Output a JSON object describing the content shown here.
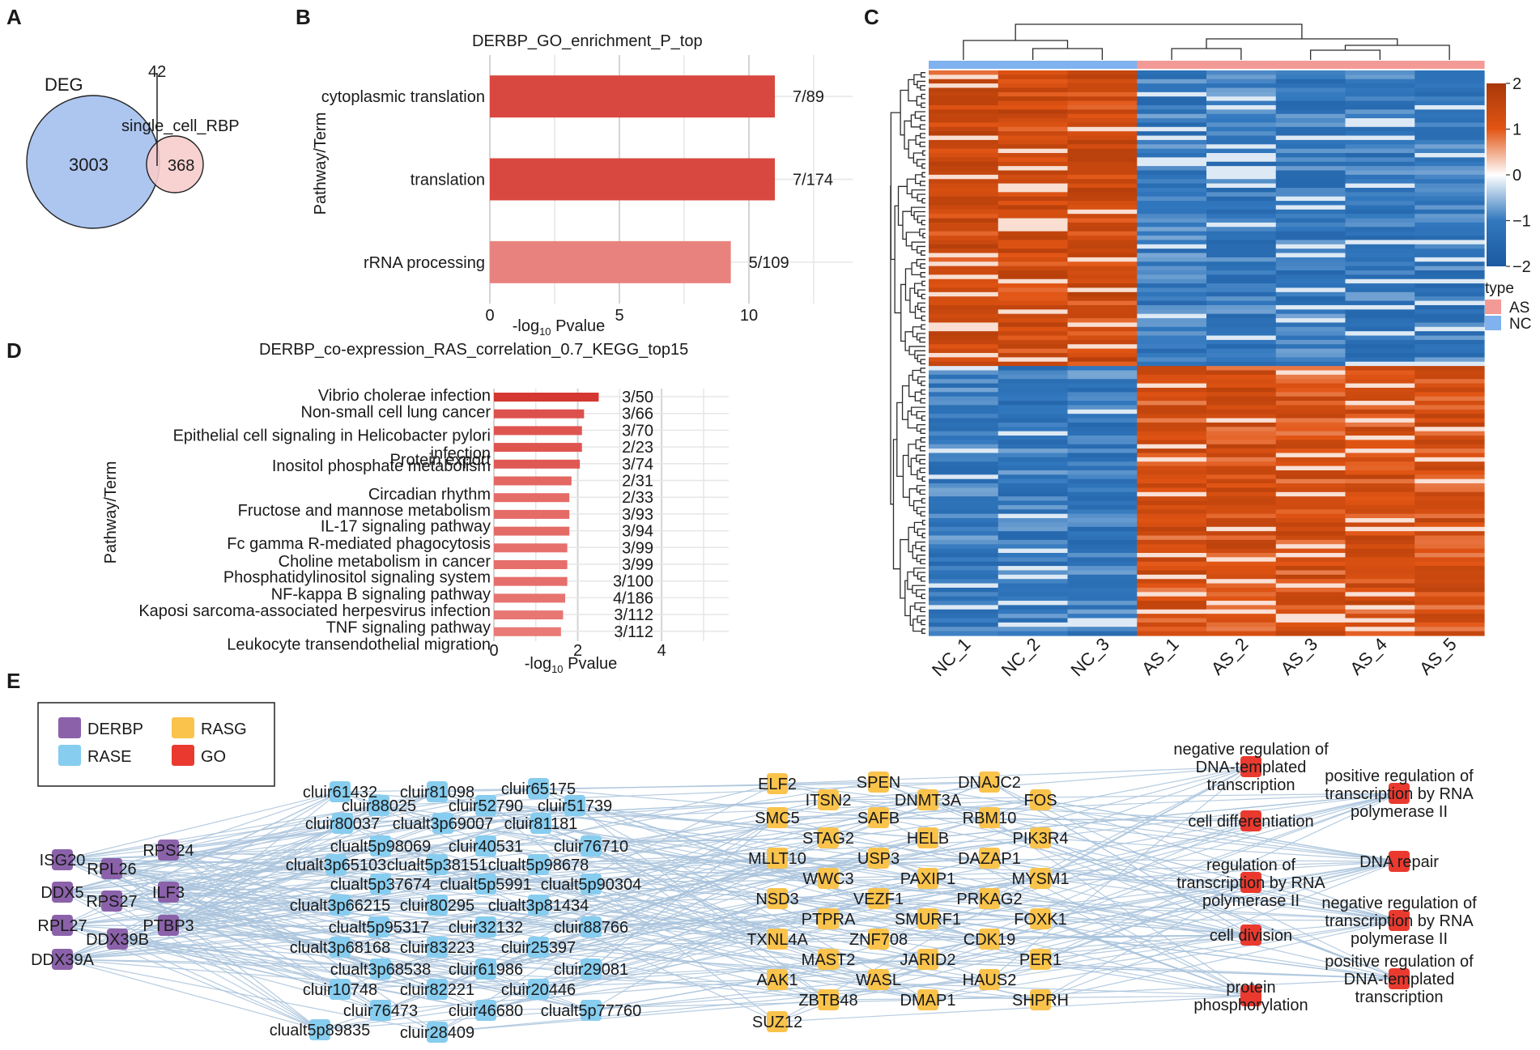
{
  "panel_labels": {
    "a": "A",
    "b": "B",
    "c": "C",
    "d": "D",
    "e": "E"
  },
  "chart_data": [
    {
      "panel": "A",
      "type": "venn",
      "sets": [
        {
          "name": "DEG",
          "only": 3003,
          "color": "#adc6f0"
        },
        {
          "name": "single_cell_RBP",
          "only": 368,
          "color": "#f7cccc"
        }
      ],
      "intersection": 42
    },
    {
      "panel": "B",
      "type": "bar",
      "orientation": "horizontal",
      "title": "DERBP_GO_enrichment_P_top",
      "xlabel_prefix": "-log",
      "xlabel_sub": "10",
      "xlabel_suffix": " Pvalue",
      "ylabel": "Pathway/Term",
      "xlim": [
        0,
        14
      ],
      "xticks": [
        0,
        5,
        10
      ],
      "categories": [
        "cytoplasmic translation",
        "translation",
        "rRNA processing"
      ],
      "values": [
        11.0,
        11.0,
        9.3
      ],
      "labels": [
        "7/89",
        "7/174",
        "5/109"
      ],
      "colors": [
        "#d94840",
        "#d94840",
        "#e8827e"
      ]
    },
    {
      "panel": "C",
      "type": "heatmap",
      "columns": [
        "NC_1",
        "NC_2",
        "NC_3",
        "AS_1",
        "AS_2",
        "AS_3",
        "AS_4",
        "AS_5"
      ],
      "column_types": [
        "NC",
        "NC",
        "NC",
        "AS",
        "AS",
        "AS",
        "AS",
        "AS"
      ],
      "color_scale": {
        "min": -2,
        "max": 2,
        "ticks": [
          "2",
          "1",
          "0",
          "−1",
          "−2"
        ],
        "low": "#1b5aa0",
        "mid": "#ffffff",
        "high": "#a83808"
      },
      "legend_title": "type",
      "legend_items": [
        {
          "label": "AS",
          "color": "#f49a96"
        },
        {
          "label": "NC",
          "color": "#7fb2ef"
        }
      ],
      "n_rows": 130,
      "row_clusters": [
        {
          "rows": 68,
          "NC": 1.3,
          "AS": -1.1
        },
        {
          "rows": 62,
          "NC": -1.1,
          "AS": 1.2
        }
      ]
    },
    {
      "panel": "D",
      "type": "bar",
      "orientation": "horizontal",
      "title": "DERBP_co-expression_RAS_correlation_0.7_KEGG_top15",
      "xlabel_prefix": "-log",
      "xlabel_sub": "10",
      "xlabel_suffix": " Pvalue",
      "ylabel": "Pathway/Term",
      "xlim": [
        0,
        5.6
      ],
      "xticks": [
        0,
        2,
        4
      ],
      "categories": [
        "Vibrio cholerae infection",
        "Non-small cell lung cancer",
        "Epithelial cell signaling in Helicobacter pylori infection",
        "Protein export",
        "Inositol phosphate metabolism",
        "Circadian rhythm",
        "Fructose and mannose metabolism",
        "IL-17 signaling pathway",
        "Fc gamma R-mediated phagocytosis",
        "Choline metabolism in cancer",
        "Phosphatidylinositol signaling system",
        "NF-kappa B signaling pathway",
        "Kaposi sarcoma-associated herpesvirus infection",
        "TNF signaling pathway",
        "Leukocyte transendothelial migration"
      ],
      "values": [
        2.5,
        2.15,
        2.1,
        2.1,
        2.05,
        1.85,
        1.8,
        1.8,
        1.8,
        1.75,
        1.75,
        1.75,
        1.7,
        1.65,
        1.6
      ],
      "labels": [
        "3/50",
        "3/66",
        "3/70",
        "2/23",
        "3/74",
        "2/31",
        "2/33",
        "3/93",
        "3/94",
        "3/99",
        "3/99",
        "3/100",
        "4/186",
        "3/112",
        "3/112"
      ]
    },
    {
      "panel": "E",
      "type": "network",
      "legend": [
        {
          "label": "DERBP",
          "color": "#8b62aa"
        },
        {
          "label": "RASE",
          "color": "#87cdef"
        },
        {
          "label": "RASG",
          "color": "#f9c34c"
        },
        {
          "label": "GO",
          "color": "#ea3a2f"
        }
      ],
      "derbp": [
        "ISG20",
        "RPS24",
        "RPL26",
        "DDX5",
        "ILF3",
        "RPS27",
        "RPL27",
        "PTBP3",
        "DDX39B",
        "DDX39A"
      ],
      "rase": [
        "cluir61432",
        "cluir81098",
        "cluir65175",
        "cluir88025",
        "cluir52790",
        "cluir51739",
        "cluir80037",
        "clualt3p69007",
        "cluir81181",
        "clualt5p98069",
        "cluir40531",
        "cluir76710",
        "clualt3p65103",
        "clualt5p38151",
        "clualt5p98678",
        "clualt5p37674",
        "clualt5p5991",
        "clualt5p90304",
        "clualt3p66215",
        "cluir80295",
        "clualt3p81434",
        "clualt5p95317",
        "cluir32132",
        "cluir88766",
        "clualt3p68168",
        "cluir83223",
        "cluir25397",
        "clualt3p68538",
        "cluir61986",
        "cluir29081",
        "cluir10748",
        "cluir82221",
        "cluir20446",
        "cluir76473",
        "cluir46680",
        "clualt5p77760",
        "clualt5p89835",
        "cluir28409"
      ],
      "rasg": [
        "ELF2",
        "SPEN",
        "DNAJC2",
        "ITSN2",
        "DNMT3A",
        "FOS",
        "SMC5",
        "SAFB",
        "RBM10",
        "STAG2",
        "HELB",
        "PIK3R4",
        "MLLT10",
        "USP3",
        "DAZAP1",
        "WWC3",
        "PAXIP1",
        "MYSM1",
        "NSD3",
        "VEZF1",
        "PRKAG2",
        "PTPRA",
        "SMURF1",
        "FOXK1",
        "TXNL4A",
        "ZNF708",
        "CDK19",
        "MAST2",
        "JARID2",
        "PER1",
        "AAK1",
        "WASL",
        "HAUS2",
        "ZBTB48",
        "DMAP1",
        "SHPRH",
        "SUZ12"
      ],
      "go": [
        "negative regulation of DNA-templated transcription",
        "positive regulation of transcription by RNA polymerase II",
        "cell differentiation",
        "DNA repair",
        "regulation of transcription by RNA polymerase II",
        "negative regulation of transcription by RNA polymerase II",
        "cell division",
        "positive regulation of DNA-templated transcription",
        "protein phosphorylation"
      ]
    }
  ],
  "go_text": {
    "neg_dna": [
      "negative regulation of",
      "DNA-templated",
      "transcription"
    ],
    "pos_rna": [
      "positive regulation of",
      "transcription by RNA",
      "polymerase II"
    ],
    "cell_diff": [
      "cell differentiation"
    ],
    "dna_repair": [
      "DNA repair"
    ],
    "reg_rna": [
      "regulation of",
      "transcription by RNA",
      "polymerase II"
    ],
    "neg_rna": [
      "negative regulation of",
      "transcription by RNA",
      "polymerase II"
    ],
    "cell_div": [
      "cell division"
    ],
    "pos_dna": [
      "positive regulation of",
      "DNA-templated",
      "transcription"
    ],
    "prot_phos": [
      "protein",
      "phosphorylation"
    ]
  },
  "panel_d_wrapped": {
    "epithelial_line1": "Epithelial cell signaling in Helicobacter pylori",
    "epithelial_line2": "infection"
  }
}
